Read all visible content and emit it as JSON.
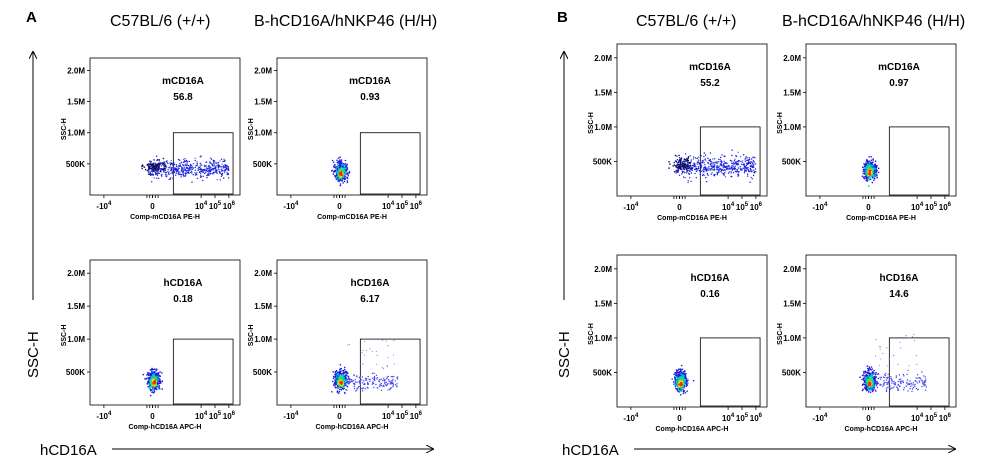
{
  "figure": {
    "panels": [
      {
        "letter": "A",
        "col_titles": [
          "C57BL/6 (+/+)",
          "B-hCD16A/hNKP46 (H/H)"
        ],
        "y_axis_label": "SSC-H",
        "x_axis_label": "hCD16A"
      },
      {
        "letter": "B",
        "col_titles": [
          "C57BL/6 (+/+)",
          "B-hCD16A/hNKP46 (H/H)"
        ],
        "y_axis_label": "SSC-H",
        "x_axis_label": "hCD16A"
      }
    ]
  },
  "chart_data": [
    {
      "panel": "A",
      "strain": "C57BL/6 (+/+)",
      "type": "scatter",
      "gate_label": "mCD16A",
      "gate_value": "56.8",
      "xlabel": "Comp-mCD16A PE-H",
      "ylabel": "SSC-H",
      "distribution": "spread",
      "gate_x": [
        1.5,
        5.8
      ],
      "gate_y": [
        0,
        1.0
      ]
    },
    {
      "panel": "A",
      "strain": "B-hCD16A/hNKP46 (H/H)",
      "type": "scatter",
      "gate_label": "mCD16A",
      "gate_value": "0.93",
      "xlabel": "Comp-mCD16A PE-H",
      "ylabel": "SSC-H",
      "distribution": "cluster",
      "gate_x": [
        1.5,
        5.8
      ],
      "gate_y": [
        0,
        1.0
      ]
    },
    {
      "panel": "A",
      "strain": "C57BL/6 (+/+)",
      "type": "scatter",
      "gate_label": "hCD16A",
      "gate_value": "0.18",
      "xlabel": "Comp-hCD16A APC-H",
      "ylabel": "SSC-H",
      "distribution": "cluster",
      "gate_x": [
        1.5,
        5.8
      ],
      "gate_y": [
        0,
        1.0
      ]
    },
    {
      "panel": "A",
      "strain": "B-hCD16A/hNKP46 (H/H)",
      "type": "scatter",
      "gate_label": "hCD16A",
      "gate_value": "6.17",
      "xlabel": "Comp-hCD16A APC-H",
      "ylabel": "SSC-H",
      "distribution": "tail",
      "gate_x": [
        1.5,
        5.8
      ],
      "gate_y": [
        0,
        1.0
      ]
    },
    {
      "panel": "B",
      "strain": "C57BL/6 (+/+)",
      "type": "scatter",
      "gate_label": "mCD16A",
      "gate_value": "55.2",
      "xlabel": "Comp-mCD16A PE-H",
      "ylabel": "SSC-H",
      "distribution": "spread",
      "gate_x": [
        1.5,
        5.8
      ],
      "gate_y": [
        0,
        1.0
      ]
    },
    {
      "panel": "B",
      "strain": "B-hCD16A/hNKP46 (H/H)",
      "type": "scatter",
      "gate_label": "mCD16A",
      "gate_value": "0.97",
      "xlabel": "Comp-mCD16A PE-H",
      "ylabel": "SSC-H",
      "distribution": "cluster",
      "gate_x": [
        1.5,
        5.8
      ],
      "gate_y": [
        0,
        1.0
      ]
    },
    {
      "panel": "B",
      "strain": "C57BL/6 (+/+)",
      "type": "scatter",
      "gate_label": "hCD16A",
      "gate_value": "0.16",
      "xlabel": "Comp-hCD16A APC-H",
      "ylabel": "SSC-H",
      "distribution": "cluster",
      "gate_x": [
        1.5,
        5.8
      ],
      "gate_y": [
        0,
        1.0
      ]
    },
    {
      "panel": "B",
      "strain": "B-hCD16A/hNKP46 (H/H)",
      "type": "scatter",
      "gate_label": "hCD16A",
      "gate_value": "14.6",
      "xlabel": "Comp-hCD16A APC-H",
      "ylabel": "SSC-H",
      "distribution": "tail",
      "gate_x": [
        1.5,
        5.8
      ],
      "gate_y": [
        0,
        1.0
      ]
    }
  ],
  "axes": {
    "y_ticks": [
      "500K",
      "1.0M",
      "1.5M",
      "2.0M"
    ],
    "y_values": [
      0.5,
      1.0,
      1.5,
      2.0
    ],
    "ylim": [
      0,
      2.2
    ],
    "xlim": [
      -4.5,
      6.3
    ],
    "x_ticks": [
      {
        "pos": -3.5,
        "base": "-10",
        "exp": "4"
      },
      {
        "pos": 0,
        "base": "0",
        "exp": ""
      },
      {
        "pos": 3.5,
        "base": "10",
        "exp": "4"
      },
      {
        "pos": 4.5,
        "base": "10",
        "exp": "5"
      },
      {
        "pos": 5.5,
        "base": "10",
        "exp": "6"
      }
    ]
  },
  "colors": {
    "gate": "#000000",
    "dots_low": "#1a1adc",
    "dots_mid": "#00c8c8",
    "dots_high": "#f0e000",
    "dots_peak": "#ff2200"
  }
}
